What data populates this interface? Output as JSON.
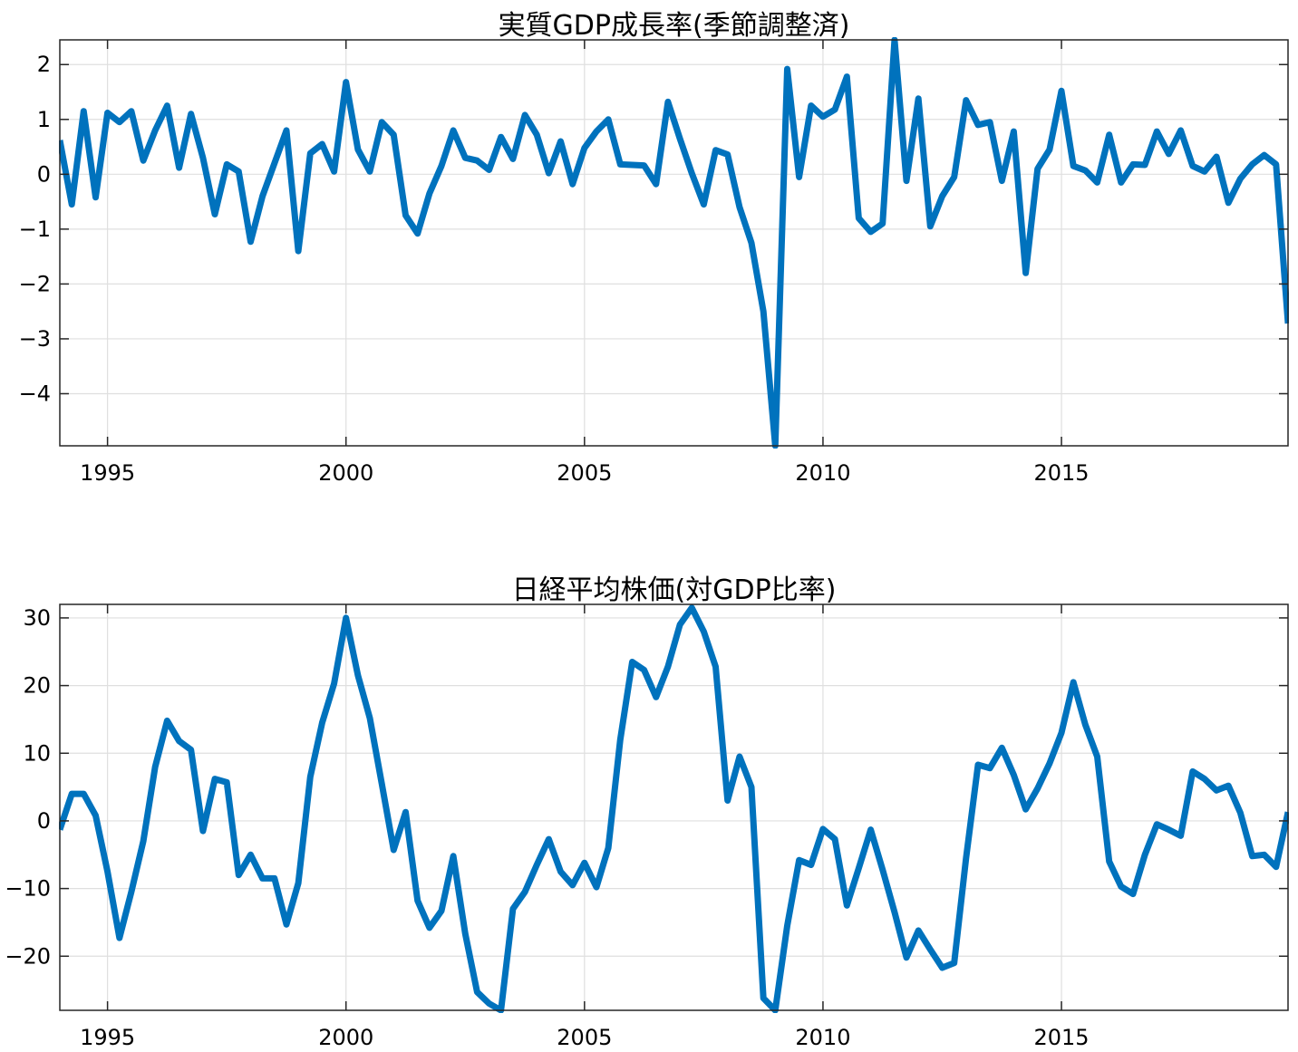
{
  "chart_data": [
    {
      "type": "line",
      "title": "実質GDP成長率(季節調整済)",
      "xlabel": "",
      "ylabel": "",
      "xlim": [
        1994.0,
        2019.75
      ],
      "ylim": [
        -4.95,
        2.45
      ],
      "x_ticks": [
        1995,
        2000,
        2005,
        2010,
        2015
      ],
      "x_tick_labels": [
        "1995",
        "2000",
        "2005",
        "2010",
        "2015"
      ],
      "y_ticks": [
        2,
        1,
        0,
        -1,
        -2,
        -3,
        -4
      ],
      "y_tick_labels": [
        "2",
        "1",
        "0",
        "−1",
        "−2",
        "−3",
        "−4"
      ],
      "grid": true,
      "color": "#0072BD",
      "x_start": 1994.0,
      "x_step": 0.25,
      "series": [
        {
          "values": [
            0.62,
            -0.55,
            1.15,
            -0.42,
            1.12,
            0.95,
            1.15,
            0.25,
            0.8,
            1.25,
            0.12,
            1.1,
            0.3,
            -0.73,
            0.18,
            0.05,
            -1.23,
            -0.4,
            0.2,
            0.8,
            -1.4,
            0.38,
            0.55,
            0.05,
            1.68,
            0.45,
            0.05,
            0.95,
            0.72,
            -0.75,
            -1.08,
            -0.35,
            0.15,
            0.8,
            0.3,
            0.25,
            0.08,
            0.68,
            0.28,
            1.08,
            0.72,
            0.02,
            0.6,
            -0.18,
            0.48,
            0.78,
            1.0,
            0.18,
            0.17,
            0.16,
            -0.18,
            1.32,
            0.65,
            0.02,
            -0.55,
            0.44,
            0.36,
            -0.6,
            -1.25,
            -2.5,
            -4.95,
            1.92,
            -0.05,
            1.25,
            1.05,
            1.18,
            1.78,
            -0.8,
            -1.05,
            -0.9,
            2.45,
            -0.12,
            1.38,
            -0.95,
            -0.4,
            -0.05,
            1.35,
            0.9,
            0.95,
            -0.12,
            0.78,
            -1.8,
            0.1,
            0.45,
            1.52,
            0.15,
            0.07,
            -0.15,
            0.72,
            -0.15,
            0.18,
            0.17,
            0.78,
            0.37,
            0.8,
            0.15,
            0.05,
            0.32,
            -0.52,
            -0.08,
            0.18,
            0.35,
            0.18,
            -2.72
          ]
        }
      ]
    },
    {
      "type": "line",
      "title": "日経平均株価(対GDP比率)",
      "xlabel": "",
      "ylabel": "",
      "xlim": [
        1994.0,
        2019.75
      ],
      "ylim": [
        -28,
        32
      ],
      "x_ticks": [
        1995,
        2000,
        2005,
        2010,
        2015
      ],
      "x_tick_labels": [
        "1995",
        "2000",
        "2005",
        "2010",
        "2015"
      ],
      "y_ticks": [
        30,
        20,
        10,
        0,
        -10,
        -20
      ],
      "y_tick_labels": [
        "30",
        "20",
        "10",
        "0",
        "−10",
        "−20"
      ],
      "grid": true,
      "color": "#0072BD",
      "x_start": 1994.0,
      "x_step": 0.25,
      "series": [
        {
          "values": [
            -1.3,
            4.0,
            4.0,
            0.8,
            -7.5,
            -17.3,
            -10.5,
            -3.0,
            8.0,
            14.8,
            11.8,
            10.5,
            -1.5,
            6.2,
            5.7,
            -8.0,
            -5.0,
            -8.5,
            -8.5,
            -15.3,
            -9.2,
            6.5,
            14.5,
            20.3,
            30.0,
            21.5,
            15.2,
            5.5,
            -4.3,
            1.3,
            -11.8,
            -15.8,
            -13.3,
            -5.2,
            -16.7,
            -25.3,
            -27.0,
            -28.0,
            -13.0,
            -10.5,
            -6.5,
            -2.7,
            -7.5,
            -9.5,
            -6.2,
            -9.8,
            -4.0,
            12.0,
            23.5,
            22.3,
            18.3,
            22.8,
            29.0,
            31.5,
            28.0,
            22.8,
            3.0,
            9.5,
            5.0,
            -26.2,
            -28.0,
            -15.5,
            -5.8,
            -6.5,
            -1.2,
            -2.7,
            -12.5,
            -7.0,
            -1.3,
            -7.2,
            -13.5,
            -20.2,
            -16.2,
            -19.0,
            -21.7,
            -21.0,
            -5.5,
            8.3,
            7.8,
            10.8,
            6.8,
            1.7,
            4.8,
            8.5,
            13.0,
            20.5,
            14.2,
            9.5,
            -6.0,
            -9.7,
            -10.8,
            -5.0,
            -0.5,
            -1.3,
            -2.2,
            7.3,
            6.2,
            4.5,
            5.2,
            1.2,
            -5.2,
            -5.0,
            -6.8,
            1.3
          ]
        }
      ]
    }
  ]
}
